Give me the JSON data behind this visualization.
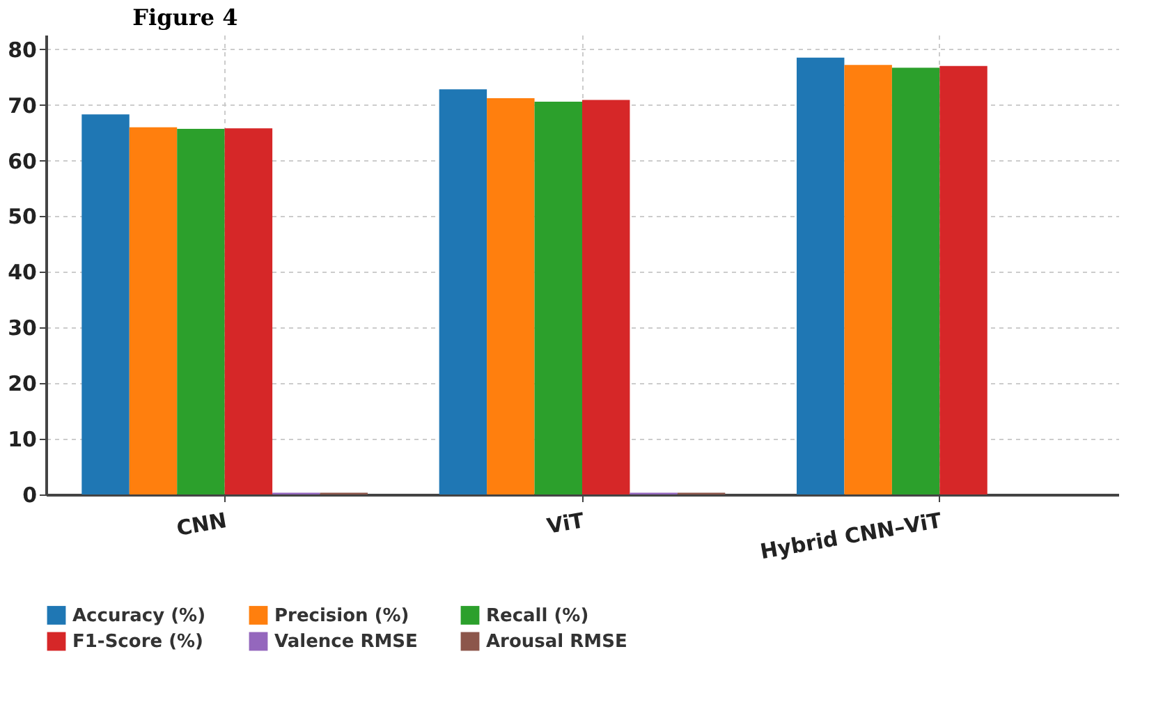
{
  "chart_data": {
    "type": "bar",
    "title": "Figure 4",
    "categories": [
      "CNN",
      "ViT",
      "Hybrid CNN–ViT"
    ],
    "series": [
      {
        "name": "Accuracy (%)",
        "color": "#1f77b4",
        "values": [
          68.3,
          72.8,
          78.5
        ]
      },
      {
        "name": "Precision (%)",
        "color": "#ff7f0e",
        "values": [
          66.0,
          71.2,
          77.2
        ]
      },
      {
        "name": "Recall (%)",
        "color": "#2ca02c",
        "values": [
          65.7,
          70.6,
          76.7
        ]
      },
      {
        "name": "F1-Score (%)",
        "color": "#d62728",
        "values": [
          65.8,
          70.9,
          77.0
        ]
      },
      {
        "name": "Valence RMSE",
        "color": "#9467bd",
        "values": [
          0.3,
          0.3,
          null
        ]
      },
      {
        "name": "Arousal RMSE",
        "color": "#8c564b",
        "values": [
          0.3,
          0.3,
          null
        ]
      }
    ],
    "ylim": [
      0,
      82.6
    ],
    "yticks": [
      0,
      10,
      20,
      30,
      40,
      50,
      60,
      70,
      80
    ],
    "grid": true,
    "legend": "bottom"
  }
}
